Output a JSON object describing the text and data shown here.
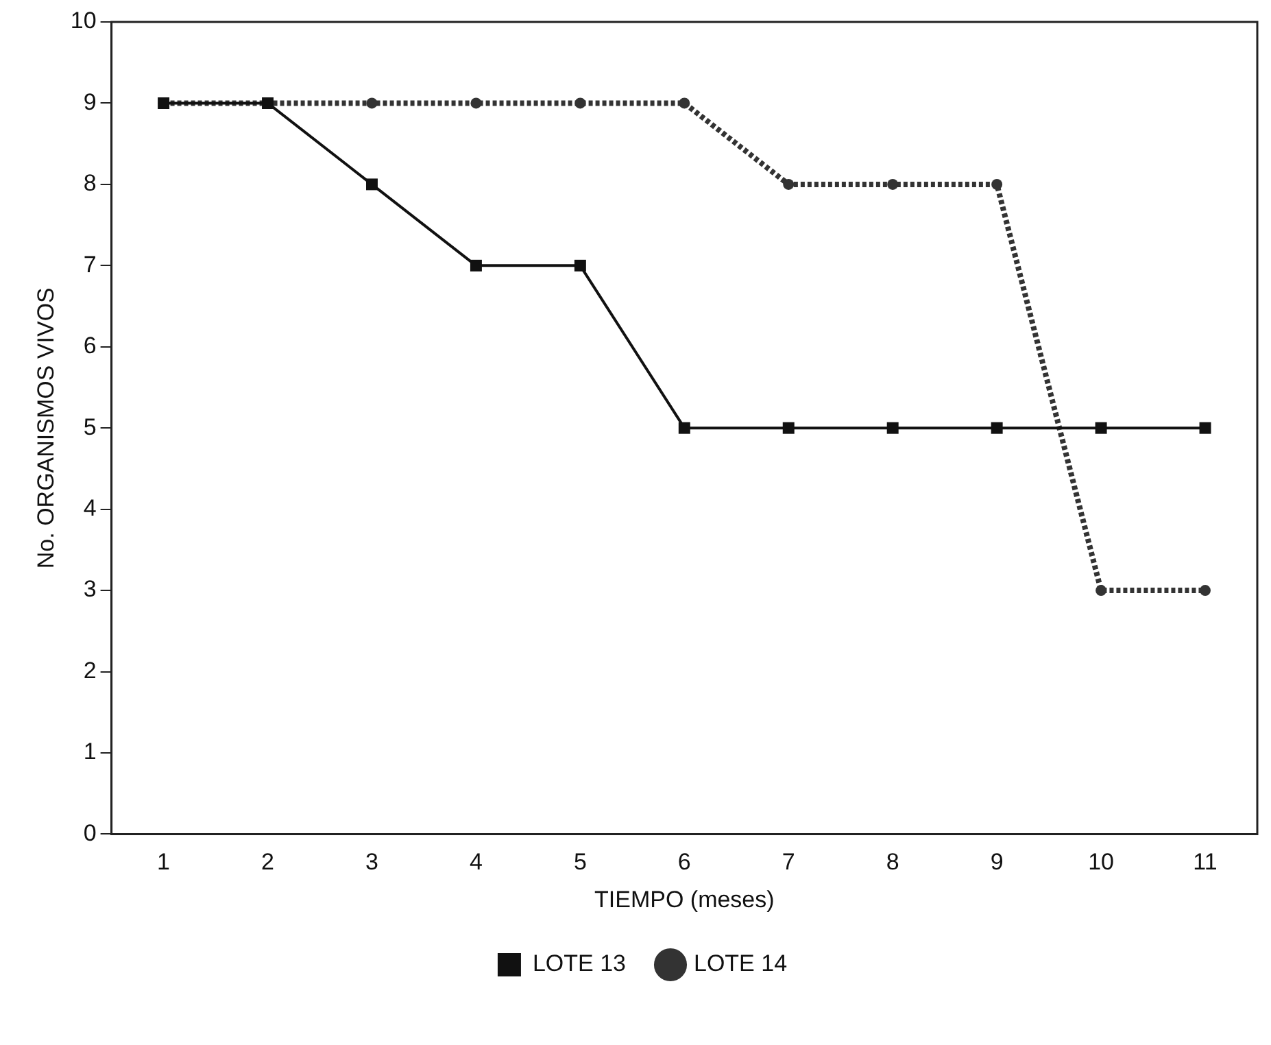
{
  "chart_data": {
    "type": "line",
    "xlabel": "TIEMPO (meses)",
    "ylabel": "No. ORGANISMOS VIVOS",
    "categories": [
      "1",
      "2",
      "3",
      "4",
      "5",
      "6",
      "7",
      "8",
      "9",
      "10",
      "11"
    ],
    "ylim": [
      0,
      10
    ],
    "yticks": [
      0,
      1,
      2,
      3,
      4,
      5,
      6,
      7,
      8,
      9,
      10
    ],
    "grid": false,
    "legend": "bottom",
    "series": [
      {
        "name": "LOTE 13",
        "color": "#111111",
        "marker": "square",
        "line_style": "solid",
        "values": [
          9,
          9,
          8,
          7,
          7,
          5,
          5,
          5,
          5,
          5,
          5
        ]
      },
      {
        "name": "LOTE 14",
        "color": "#333333",
        "marker": "circle",
        "line_style": "dotted",
        "values": [
          9,
          9,
          9,
          9,
          9,
          9,
          8,
          8,
          8,
          3,
          3
        ]
      }
    ]
  }
}
